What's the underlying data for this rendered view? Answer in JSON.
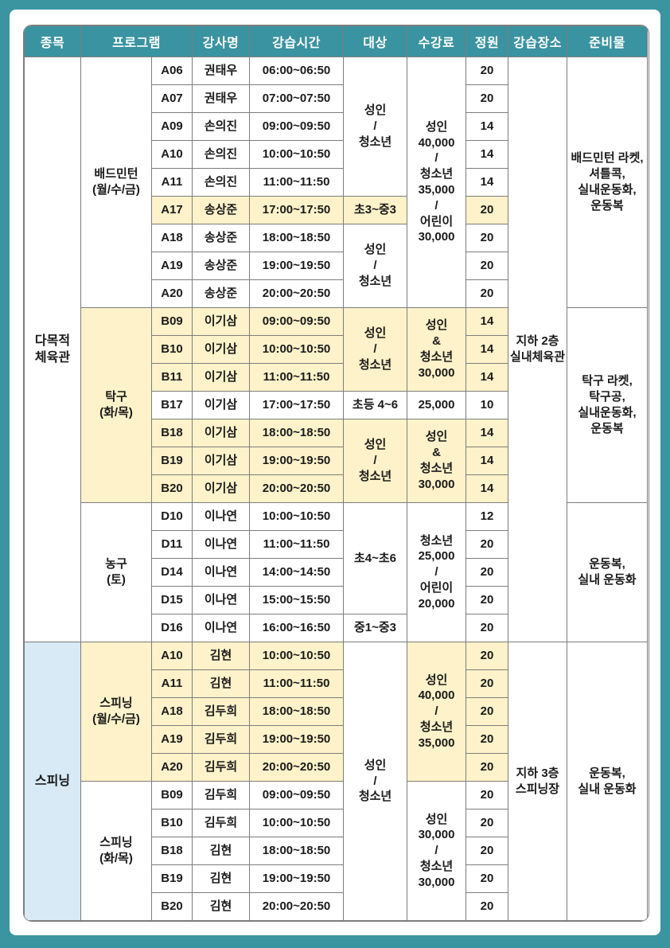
{
  "colors": {
    "page_bg": "#3B95A1",
    "header_bg": "#3A93A0",
    "header_text": "#FFFFFF",
    "highlight_yellow": "#FDF2C9",
    "category_blue": "#D7EAF6",
    "border_gray": "#7D7D7D",
    "body_text": "#1A1A1A"
  },
  "table": {
    "header": [
      "종목",
      "프로그램",
      "강사명",
      "강습시간",
      "대상",
      "수강료",
      "정원",
      "강습장소",
      "준비물"
    ],
    "rows": [
      [
        {
          "col": "category",
          "t": "다목적\n체육관",
          "rs": 21,
          "cls": "cat"
        },
        {
          "col": "program",
          "t": "배드민턴\n(월/수/금)",
          "rs": 9
        },
        {
          "col": "code",
          "t": "A06"
        },
        {
          "col": "instructor",
          "t": "권태우"
        },
        {
          "col": "time",
          "t": "06:00~06:50"
        },
        {
          "col": "target",
          "t": "성인\n/\n청소년",
          "rs": 5
        },
        {
          "col": "fee",
          "t": "성인\n40,000\n/\n청소년\n35,000\n/\n어린이\n30,000",
          "rs": 9
        },
        {
          "col": "capacity",
          "t": "20"
        },
        {
          "col": "location",
          "t": "지하 2층\n실내체육관",
          "rs": 21
        },
        {
          "col": "materials",
          "t": "배드민턴 라켓,\n셔틀콕,\n실내운동화,\n운동복",
          "rs": 9
        }
      ],
      [
        {
          "col": "code",
          "t": "A07"
        },
        {
          "col": "instructor",
          "t": "권태우"
        },
        {
          "col": "time",
          "t": "07:00~07:50"
        },
        {
          "col": "capacity",
          "t": "20"
        }
      ],
      [
        {
          "col": "code",
          "t": "A09"
        },
        {
          "col": "instructor",
          "t": "손의진"
        },
        {
          "col": "time",
          "t": "09:00~09:50"
        },
        {
          "col": "capacity",
          "t": "14"
        }
      ],
      [
        {
          "col": "code",
          "t": "A10"
        },
        {
          "col": "instructor",
          "t": "손의진"
        },
        {
          "col": "time",
          "t": "10:00~10:50"
        },
        {
          "col": "capacity",
          "t": "14"
        }
      ],
      [
        {
          "col": "code",
          "t": "A11"
        },
        {
          "col": "instructor",
          "t": "손의진"
        },
        {
          "col": "time",
          "t": "11:00~11:50"
        },
        {
          "col": "capacity",
          "t": "14"
        }
      ],
      [
        {
          "col": "code",
          "t": "A17",
          "bg": "y"
        },
        {
          "col": "instructor",
          "t": "송상준",
          "bg": "y"
        },
        {
          "col": "time",
          "t": "17:00~17:50",
          "bg": "y"
        },
        {
          "col": "target",
          "t": "초3~중3",
          "bg": "y"
        },
        {
          "col": "capacity",
          "t": "20",
          "bg": "y"
        }
      ],
      [
        {
          "col": "code",
          "t": "A18"
        },
        {
          "col": "instructor",
          "t": "송상준"
        },
        {
          "col": "time",
          "t": "18:00~18:50"
        },
        {
          "col": "target",
          "t": "성인\n/\n청소년",
          "rs": 3
        },
        {
          "col": "capacity",
          "t": "20"
        }
      ],
      [
        {
          "col": "code",
          "t": "A19"
        },
        {
          "col": "instructor",
          "t": "송상준"
        },
        {
          "col": "time",
          "t": "19:00~19:50"
        },
        {
          "col": "capacity",
          "t": "20"
        }
      ],
      [
        {
          "col": "code",
          "t": "A20"
        },
        {
          "col": "instructor",
          "t": "송상준"
        },
        {
          "col": "time",
          "t": "20:00~20:50"
        },
        {
          "col": "capacity",
          "t": "20"
        }
      ],
      [
        {
          "col": "program",
          "t": "탁구\n(화/목)",
          "rs": 7,
          "bg": "y"
        },
        {
          "col": "code",
          "t": "B09",
          "bg": "y"
        },
        {
          "col": "instructor",
          "t": "이기삼",
          "bg": "y"
        },
        {
          "col": "time",
          "t": "09:00~09:50",
          "bg": "y"
        },
        {
          "col": "target",
          "t": "성인\n/\n청소년",
          "rs": 3,
          "bg": "y"
        },
        {
          "col": "fee",
          "t": "성인\n&\n청소년\n30,000",
          "rs": 3,
          "bg": "y"
        },
        {
          "col": "capacity",
          "t": "14",
          "bg": "y"
        },
        {
          "col": "materials",
          "t": "탁구 라켓,\n탁구공,\n실내운동화,\n운동복",
          "rs": 7
        }
      ],
      [
        {
          "col": "code",
          "t": "B10",
          "bg": "y"
        },
        {
          "col": "instructor",
          "t": "이기삼",
          "bg": "y"
        },
        {
          "col": "time",
          "t": "10:00~10:50",
          "bg": "y"
        },
        {
          "col": "capacity",
          "t": "14",
          "bg": "y"
        }
      ],
      [
        {
          "col": "code",
          "t": "B11",
          "bg": "y"
        },
        {
          "col": "instructor",
          "t": "이기삼",
          "bg": "y"
        },
        {
          "col": "time",
          "t": "11:00~11:50",
          "bg": "y"
        },
        {
          "col": "capacity",
          "t": "14",
          "bg": "y"
        }
      ],
      [
        {
          "col": "code",
          "t": "B17"
        },
        {
          "col": "instructor",
          "t": "이기삼"
        },
        {
          "col": "time",
          "t": "17:00~17:50"
        },
        {
          "col": "target",
          "t": "초등 4~6"
        },
        {
          "col": "fee",
          "t": "25,000"
        },
        {
          "col": "capacity",
          "t": "10"
        }
      ],
      [
        {
          "col": "code",
          "t": "B18",
          "bg": "y"
        },
        {
          "col": "instructor",
          "t": "이기삼",
          "bg": "y"
        },
        {
          "col": "time",
          "t": "18:00~18:50",
          "bg": "y"
        },
        {
          "col": "target",
          "t": "성인\n/\n청소년",
          "rs": 3,
          "bg": "y"
        },
        {
          "col": "fee",
          "t": "성인\n&\n청소년\n30,000",
          "rs": 3,
          "bg": "y"
        },
        {
          "col": "capacity",
          "t": "14",
          "bg": "y"
        }
      ],
      [
        {
          "col": "code",
          "t": "B19",
          "bg": "y"
        },
        {
          "col": "instructor",
          "t": "이기삼",
          "bg": "y"
        },
        {
          "col": "time",
          "t": "19:00~19:50",
          "bg": "y"
        },
        {
          "col": "capacity",
          "t": "14",
          "bg": "y"
        }
      ],
      [
        {
          "col": "code",
          "t": "B20",
          "bg": "y"
        },
        {
          "col": "instructor",
          "t": "이기삼",
          "bg": "y"
        },
        {
          "col": "time",
          "t": "20:00~20:50",
          "bg": "y"
        },
        {
          "col": "capacity",
          "t": "14",
          "bg": "y"
        }
      ],
      [
        {
          "col": "program",
          "t": "농구\n(토)",
          "rs": 5
        },
        {
          "col": "code",
          "t": "D10"
        },
        {
          "col": "instructor",
          "t": "이나연"
        },
        {
          "col": "time",
          "t": "10:00~10:50"
        },
        {
          "col": "target",
          "t": "초4~초6",
          "rs": 4
        },
        {
          "col": "fee",
          "t": "청소년\n25,000\n/\n어린이\n20,000",
          "rs": 5
        },
        {
          "col": "capacity",
          "t": "12"
        },
        {
          "col": "materials",
          "t": "운동복,\n실내 운동화",
          "rs": 5
        }
      ],
      [
        {
          "col": "code",
          "t": "D11"
        },
        {
          "col": "instructor",
          "t": "이나연"
        },
        {
          "col": "time",
          "t": "11:00~11:50"
        },
        {
          "col": "capacity",
          "t": "20"
        }
      ],
      [
        {
          "col": "code",
          "t": "D14"
        },
        {
          "col": "instructor",
          "t": "이나연"
        },
        {
          "col": "time",
          "t": "14:00~14:50"
        },
        {
          "col": "capacity",
          "t": "20"
        }
      ],
      [
        {
          "col": "code",
          "t": "D15"
        },
        {
          "col": "instructor",
          "t": "이나연"
        },
        {
          "col": "time",
          "t": "15:00~15:50"
        },
        {
          "col": "capacity",
          "t": "20"
        }
      ],
      [
        {
          "col": "code",
          "t": "D16"
        },
        {
          "col": "instructor",
          "t": "이나연"
        },
        {
          "col": "time",
          "t": "16:00~16:50"
        },
        {
          "col": "target",
          "t": "중1~중3"
        },
        {
          "col": "capacity",
          "t": "20"
        }
      ],
      [
        {
          "col": "category",
          "t": "스피닝",
          "rs": 10,
          "bg": "b",
          "cls": "cat"
        },
        {
          "col": "program",
          "t": "스피닝\n(월/수/금)",
          "rs": 5,
          "bg": "y"
        },
        {
          "col": "code",
          "t": "A10",
          "bg": "y"
        },
        {
          "col": "instructor",
          "t": "김현",
          "bg": "y"
        },
        {
          "col": "time",
          "t": "10:00~10:50",
          "bg": "y"
        },
        {
          "col": "target",
          "t": "성인\n/\n청소년",
          "rs": 10
        },
        {
          "col": "fee",
          "t": "성인\n40,000\n/\n청소년\n35,000",
          "rs": 5,
          "bg": "y"
        },
        {
          "col": "capacity",
          "t": "20",
          "bg": "y"
        },
        {
          "col": "location",
          "t": "지하 3층\n스피닝장",
          "rs": 10
        },
        {
          "col": "materials",
          "t": "운동복,\n실내 운동화",
          "rs": 10
        }
      ],
      [
        {
          "col": "code",
          "t": "A11",
          "bg": "y"
        },
        {
          "col": "instructor",
          "t": "김현",
          "bg": "y"
        },
        {
          "col": "time",
          "t": "11:00~11:50",
          "bg": "y"
        },
        {
          "col": "capacity",
          "t": "20",
          "bg": "y"
        }
      ],
      [
        {
          "col": "code",
          "t": "A18",
          "bg": "y"
        },
        {
          "col": "instructor",
          "t": "김두희",
          "bg": "y"
        },
        {
          "col": "time",
          "t": "18:00~18:50",
          "bg": "y"
        },
        {
          "col": "capacity",
          "t": "20",
          "bg": "y"
        }
      ],
      [
        {
          "col": "code",
          "t": "A19",
          "bg": "y"
        },
        {
          "col": "instructor",
          "t": "김두희",
          "bg": "y"
        },
        {
          "col": "time",
          "t": "19:00~19:50",
          "bg": "y"
        },
        {
          "col": "capacity",
          "t": "20",
          "bg": "y"
        }
      ],
      [
        {
          "col": "code",
          "t": "A20",
          "bg": "y"
        },
        {
          "col": "instructor",
          "t": "김두희",
          "bg": "y"
        },
        {
          "col": "time",
          "t": "20:00~20:50",
          "bg": "y"
        },
        {
          "col": "capacity",
          "t": "20",
          "bg": "y"
        }
      ],
      [
        {
          "col": "program",
          "t": "스피닝\n(화/목)",
          "rs": 5
        },
        {
          "col": "code",
          "t": "B09"
        },
        {
          "col": "instructor",
          "t": "김두희"
        },
        {
          "col": "time",
          "t": "09:00~09:50"
        },
        {
          "col": "fee",
          "t": "성인\n30,000\n/\n청소년\n30,000",
          "rs": 5
        },
        {
          "col": "capacity",
          "t": "20"
        }
      ],
      [
        {
          "col": "code",
          "t": "B10"
        },
        {
          "col": "instructor",
          "t": "김두희"
        },
        {
          "col": "time",
          "t": "10:00~10:50"
        },
        {
          "col": "capacity",
          "t": "20"
        }
      ],
      [
        {
          "col": "code",
          "t": "B18"
        },
        {
          "col": "instructor",
          "t": "김현"
        },
        {
          "col": "time",
          "t": "18:00~18:50"
        },
        {
          "col": "capacity",
          "t": "20"
        }
      ],
      [
        {
          "col": "code",
          "t": "B19"
        },
        {
          "col": "instructor",
          "t": "김현"
        },
        {
          "col": "time",
          "t": "19:00~19:50"
        },
        {
          "col": "capacity",
          "t": "20"
        }
      ],
      [
        {
          "col": "code",
          "t": "B20"
        },
        {
          "col": "instructor",
          "t": "김현"
        },
        {
          "col": "time",
          "t": "20:00~20:50"
        },
        {
          "col": "capacity",
          "t": "20"
        }
      ]
    ]
  }
}
